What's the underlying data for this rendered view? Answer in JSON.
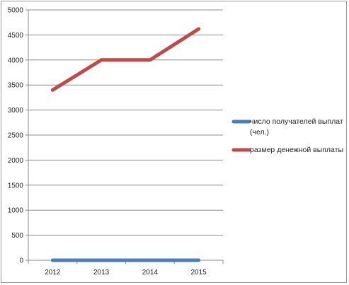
{
  "chart_data": {
    "type": "line",
    "title": "",
    "xlabel": "",
    "ylabel": "",
    "categories": [
      "2012",
      "2013",
      "2014",
      "2015"
    ],
    "ylim": [
      0,
      5000
    ],
    "yticks": [
      "0",
      "500",
      "1000",
      "1500",
      "2000",
      "2500",
      "3000",
      "3500",
      "4000",
      "4500",
      "5000"
    ],
    "grid": true,
    "legend_position": "right",
    "series": [
      {
        "name_lines": [
          "число получателей выплат",
          "(чел.)"
        ],
        "color": "#4a7ebb",
        "values": [
          0,
          0,
          0,
          0
        ]
      },
      {
        "name_lines": [
          "размер денежной выплаты"
        ],
        "color": "#be4b48",
        "values": [
          3400,
          4000,
          4000,
          4620
        ]
      }
    ]
  }
}
